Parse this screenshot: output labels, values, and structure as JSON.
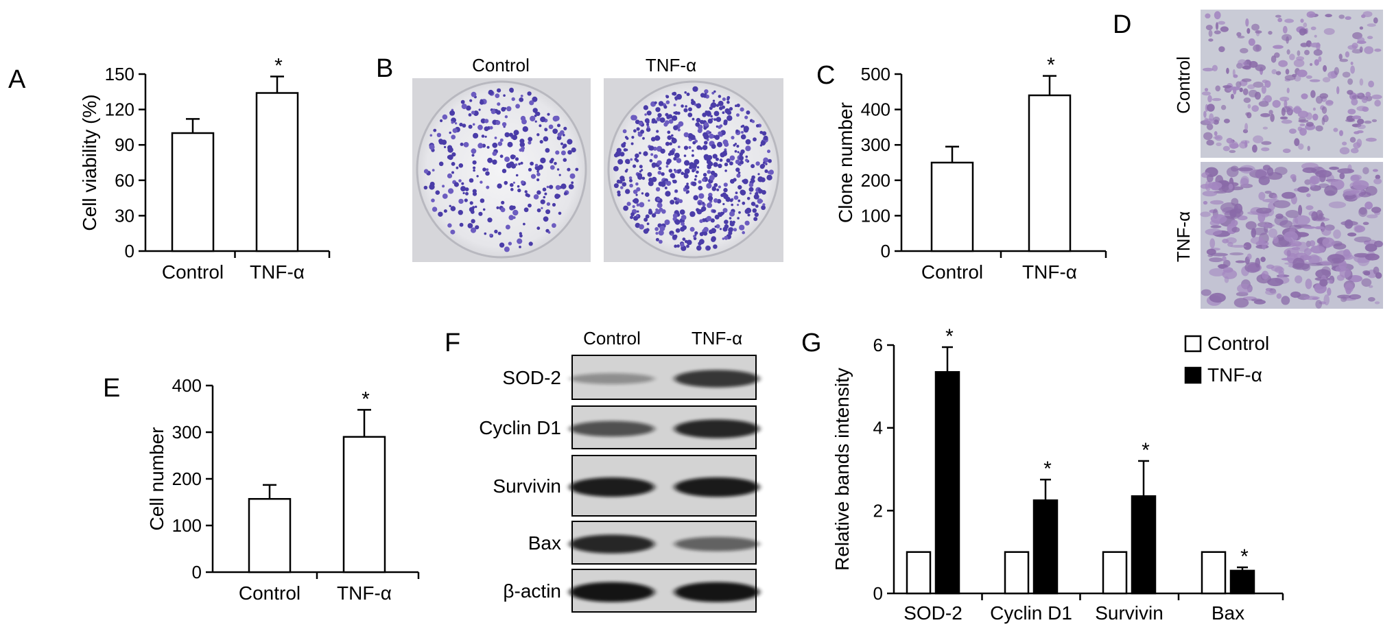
{
  "panels": {
    "A": "A",
    "B": "B",
    "C": "C",
    "D": "D",
    "E": "E",
    "F": "F",
    "G": "G"
  },
  "photos": {
    "dish_labels": [
      "Control",
      "TNF-α"
    ],
    "micro_labels": [
      "Control",
      "TNF-α"
    ]
  },
  "western": {
    "columns": [
      "Control",
      "TNF-α"
    ],
    "rows": [
      {
        "label": "SOD-2",
        "control": 0.22,
        "tnf": 0.75
      },
      {
        "label": "Cyclin D1",
        "control": 0.6,
        "tnf": 0.85
      },
      {
        "label": "Survivin",
        "control": 0.9,
        "tnf": 0.92
      },
      {
        "label": "Bax",
        "control": 0.85,
        "tnf": 0.5
      },
      {
        "label": "β-actin",
        "control": 0.95,
        "tnf": 0.95
      }
    ]
  },
  "colors": {
    "control_fill": "#ffffff",
    "tnf_fill": "#000000",
    "stroke": "#000000"
  },
  "chart_data": [
    {
      "type": "bar",
      "panel": "A",
      "categories": [
        "Control",
        "TNF-α"
      ],
      "values": [
        100,
        134
      ],
      "errors": [
        12,
        14
      ],
      "significance": [
        "",
        "*"
      ],
      "ylabel": "Cell viability (%)",
      "ylim": [
        0,
        150
      ],
      "yticks": [
        0,
        30,
        60,
        90,
        120,
        150
      ]
    },
    {
      "type": "bar",
      "panel": "C",
      "categories": [
        "Control",
        "TNF-α"
      ],
      "values": [
        250,
        440
      ],
      "errors": [
        45,
        55
      ],
      "significance": [
        "",
        "*"
      ],
      "ylabel": "Clone number",
      "ylim": [
        0,
        500
      ],
      "yticks": [
        0,
        100,
        200,
        300,
        400,
        500
      ]
    },
    {
      "type": "bar",
      "panel": "E",
      "categories": [
        "Control",
        "TNF-α"
      ],
      "values": [
        157,
        290
      ],
      "errors": [
        30,
        58
      ],
      "significance": [
        "",
        "*"
      ],
      "ylabel": "Cell number",
      "ylim": [
        0,
        400
      ],
      "yticks": [
        0,
        100,
        200,
        300,
        400
      ]
    },
    {
      "type": "bar",
      "panel": "G",
      "categories": [
        "SOD-2",
        "Cyclin D1",
        "Survivin",
        "Bax"
      ],
      "series": [
        {
          "name": "Control",
          "values": [
            1,
            1,
            1,
            1
          ],
          "errors": [
            0,
            0,
            0,
            0
          ]
        },
        {
          "name": "TNF-α",
          "values": [
            5.35,
            2.25,
            2.35,
            0.55
          ],
          "errors": [
            0.6,
            0.5,
            0.85,
            0.08
          ]
        }
      ],
      "significance": [
        "*",
        "*",
        "*",
        "*"
      ],
      "ylabel": "Relative bands intensity",
      "ylim": [
        0,
        6
      ],
      "yticks": [
        0,
        2,
        4,
        6
      ],
      "legend": "top-right"
    }
  ]
}
